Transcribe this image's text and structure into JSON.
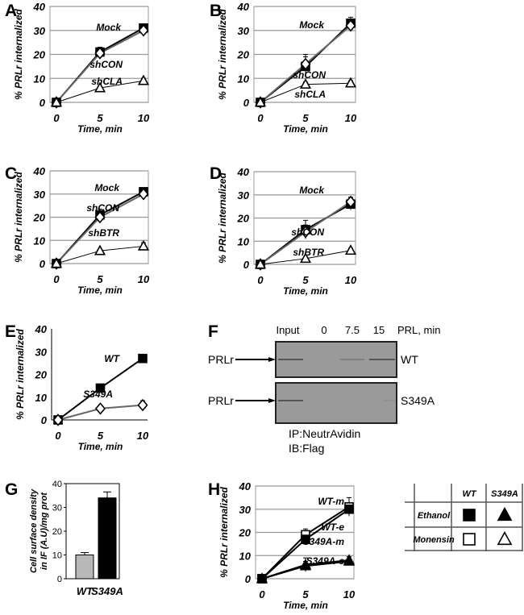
{
  "panel_letters": [
    "A",
    "B",
    "C",
    "D",
    "E",
    "F",
    "G",
    "H"
  ],
  "chart_data": [
    {
      "panel": "A",
      "type": "line",
      "xlabel": "Time, min",
      "ylabel": "% PRLr internalized",
      "x": [
        0,
        5,
        10
      ],
      "xticks": [
        "0",
        "5",
        "10"
      ],
      "ylim": [
        0,
        40
      ],
      "yticks": [
        0,
        10,
        20,
        30,
        40
      ],
      "grid": true,
      "series": [
        {
          "name": "Mock",
          "marker": "filled-square",
          "values": [
            0,
            21,
            31
          ],
          "errors": [
            0,
            2,
            1
          ]
        },
        {
          "name": "shCON",
          "marker": "open-diamond",
          "values": [
            0,
            20.5,
            30
          ],
          "errors": [
            0,
            2,
            1
          ]
        },
        {
          "name": "shCLA",
          "marker": "open-triangle",
          "values": [
            0,
            6,
            9
          ],
          "errors": [
            0,
            0.5,
            1
          ]
        }
      ]
    },
    {
      "panel": "B",
      "type": "line",
      "xlabel": "Time, min",
      "ylabel": "% PRLr internalized",
      "x": [
        0,
        5,
        10
      ],
      "xticks": [
        "0",
        "5",
        "10"
      ],
      "ylim": [
        0,
        40
      ],
      "yticks": [
        0,
        10,
        20,
        30,
        40
      ],
      "grid": true,
      "series": [
        {
          "name": "Mock",
          "marker": "filled-square",
          "values": [
            0,
            15,
            33
          ],
          "errors": [
            0,
            4,
            2.5
          ]
        },
        {
          "name": "shCON",
          "marker": "open-diamond",
          "values": [
            0,
            16,
            32
          ],
          "errors": [
            0,
            4,
            2
          ]
        },
        {
          "name": "shCLA",
          "marker": "open-triangle",
          "values": [
            0,
            7.5,
            8
          ],
          "errors": [
            0,
            1,
            1
          ]
        }
      ]
    },
    {
      "panel": "C",
      "type": "line",
      "xlabel": "Time, min",
      "ylabel": "% PRLr internalized",
      "x": [
        0,
        5,
        10
      ],
      "xticks": [
        "0",
        "5",
        "10"
      ],
      "ylim": [
        0,
        40
      ],
      "yticks": [
        0,
        10,
        20,
        30,
        40
      ],
      "grid": true,
      "series": [
        {
          "name": "Mock",
          "marker": "filled-square",
          "values": [
            0,
            21,
            31
          ],
          "errors": [
            0,
            2.5,
            1
          ]
        },
        {
          "name": "shCON",
          "marker": "open-diamond",
          "values": [
            0,
            20,
            30
          ],
          "errors": [
            0,
            2,
            1
          ]
        },
        {
          "name": "shBTR",
          "marker": "open-triangle",
          "values": [
            0,
            5.5,
            7.5
          ],
          "errors": [
            0,
            0.5,
            1.5
          ]
        }
      ]
    },
    {
      "panel": "D",
      "type": "line",
      "xlabel": "Time, min",
      "ylabel": "% PRLr internalized",
      "x": [
        0,
        5,
        10
      ],
      "xticks": [
        "0",
        "5",
        "10"
      ],
      "ylim": [
        0,
        40
      ],
      "yticks": [
        0,
        10,
        20,
        30,
        40
      ],
      "grid": true,
      "series": [
        {
          "name": "Mock",
          "marker": "filled-square",
          "values": [
            0,
            15,
            26
          ],
          "errors": [
            0,
            4,
            2.5
          ]
        },
        {
          "name": "shCON",
          "marker": "open-diamond",
          "values": [
            0,
            14,
            27
          ],
          "errors": [
            0,
            3,
            2
          ]
        },
        {
          "name": "shBTR",
          "marker": "open-triangle",
          "values": [
            0,
            2.5,
            6
          ],
          "errors": [
            0,
            0.5,
            1
          ]
        }
      ]
    },
    {
      "panel": "E",
      "type": "line",
      "xlabel": "Time, min",
      "ylabel": "% PRLr internalized",
      "x": [
        0,
        5,
        10
      ],
      "xticks": [
        "0",
        "5",
        "10"
      ],
      "ylim": [
        0,
        40
      ],
      "yticks": [
        0,
        10,
        20,
        30,
        40
      ],
      "grid": false,
      "series": [
        {
          "name": "WT",
          "marker": "filled-square",
          "values": [
            0,
            14,
            27
          ],
          "errors": [
            0,
            1,
            1
          ]
        },
        {
          "name": "S349A",
          "marker": "open-diamond",
          "values": [
            0,
            5,
            6.5
          ],
          "errors": [
            0,
            1,
            2
          ]
        }
      ]
    },
    {
      "panel": "G",
      "type": "bar",
      "xlabel": "",
      "ylabel": "Cell surface density in IF (A.U)/mg prot",
      "categories": [
        "WT",
        "S349A"
      ],
      "values": [
        10,
        34
      ],
      "errors": [
        1,
        2.5
      ],
      "colors": [
        "#b8b8b8",
        "#000000"
      ],
      "ylim": [
        0,
        40
      ],
      "yticks": [
        0,
        10,
        20,
        30,
        40
      ],
      "grid": false
    },
    {
      "panel": "H",
      "type": "line",
      "xlabel": "Time, min",
      "ylabel": "% PRLr internalized",
      "x": [
        0,
        5,
        10
      ],
      "xticks": [
        "0",
        "5",
        "10"
      ],
      "ylim": [
        0,
        40
      ],
      "yticks": [
        0,
        10,
        20,
        30,
        40
      ],
      "grid": true,
      "series": [
        {
          "name": "WT-m",
          "marker": "open-square",
          "values": [
            0,
            19,
            31
          ],
          "errors": [
            0,
            2.5,
            4
          ]
        },
        {
          "name": "WT-e",
          "marker": "filled-square",
          "values": [
            0,
            17,
            30
          ],
          "errors": [
            0,
            2,
            2
          ]
        },
        {
          "name": "S349A-m",
          "marker": "open-triangle",
          "values": [
            0,
            6,
            8
          ],
          "errors": [
            0,
            3,
            1.5
          ]
        },
        {
          "name": "S349A-e",
          "marker": "filled-triangle",
          "values": [
            0,
            5.5,
            7.5
          ],
          "errors": [
            0,
            2,
            1
          ]
        }
      ]
    }
  ],
  "blot": {
    "columns": [
      "Input",
      "0",
      "7.5",
      "15",
      "PRL, min"
    ],
    "rows": [
      {
        "label": "PRLr",
        "sample": "WT"
      },
      {
        "label": "PRLr",
        "sample": "S349A"
      }
    ],
    "ip": "IP:NeutrAvidin",
    "ib": "IB:Flag"
  },
  "legend_table": {
    "columns": [
      "WT",
      "S349A"
    ],
    "rows": [
      {
        "label": "Ethanol",
        "markers": [
          "filled-square",
          "filled-triangle"
        ]
      },
      {
        "label": "Monensin",
        "markers": [
          "open-square",
          "open-triangle"
        ]
      }
    ]
  }
}
